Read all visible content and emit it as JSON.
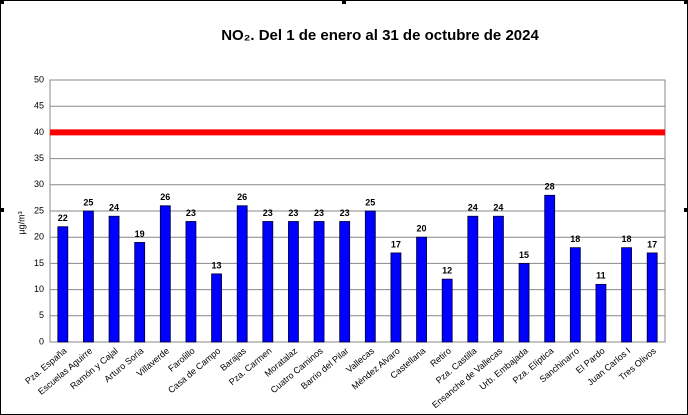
{
  "chart_data": {
    "type": "bar",
    "title": "NO₂. Del 1 de enero al 31 de octubre de 2024",
    "y_label": "µg/m³",
    "categories": [
      "Pza. España",
      "Escuelas Aguirre",
      "Ramón y Cajal",
      "Arturo Soria",
      "Villaverde",
      "Farolillo",
      "Casa de Campo",
      "Barajas",
      "Pza. Carmen",
      "Moratalaz",
      "Cuatro Caminos",
      "Barrio del Pilar",
      "Vallecas",
      "Méndez Alvaro",
      "Castellana",
      "Retiro",
      "Pza. Castilla",
      "Ensanche de Vallecas",
      "Urb. Embajada",
      "Pza. Elíptica",
      "Sanchinarro",
      "El Pardo",
      "Juan Carlos I",
      "Tres Olivos"
    ],
    "values": [
      22,
      25,
      24,
      19,
      26,
      23,
      13,
      26,
      23,
      23,
      23,
      23,
      25,
      17,
      20,
      12,
      24,
      24,
      15,
      28,
      18,
      11,
      18,
      17
    ],
    "color": "#0000ff",
    "reference_line": {
      "value": 40,
      "color": "#ff0000"
    },
    "ylim": [
      0,
      50
    ],
    "yticks": [
      0,
      5,
      10,
      15,
      20,
      25,
      30,
      35,
      40,
      45,
      50
    ],
    "grid": true
  }
}
